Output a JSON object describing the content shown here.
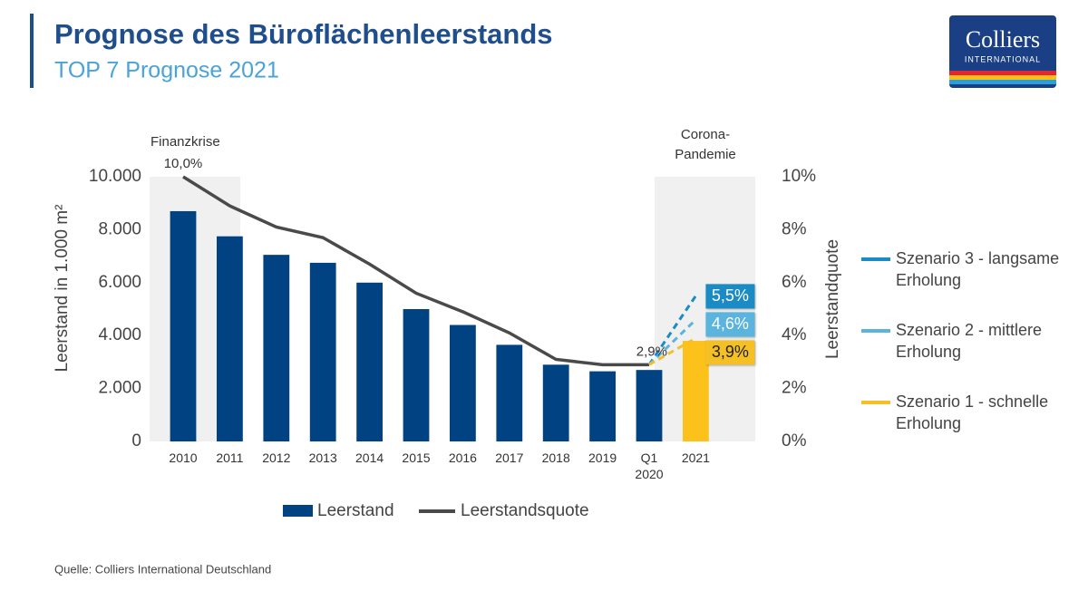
{
  "header": {
    "title": "Prognose des Büroflächenleerstands",
    "subtitle": "TOP 7 Prognose 2021"
  },
  "logo": {
    "name": "Colliers",
    "sub": "INTERNATIONAL"
  },
  "source": "Quelle: Colliers International Deutschland",
  "chart_data": {
    "type": "bar",
    "categories": [
      "2010",
      "2011",
      "2012",
      "2013",
      "2014",
      "2015",
      "2016",
      "2017",
      "2018",
      "2019",
      "Q1 2020",
      "2021"
    ],
    "ylabel": "Leerstand in 1.000 m²",
    "y2label": "Leerstandquote",
    "ylim": [
      0,
      10000
    ],
    "yticks": [
      0,
      {
        "value": 2000,
        "label": "2.000"
      },
      {
        "value": 4000,
        "label": "4.000"
      },
      {
        "value": 6000,
        "label": "6.000"
      },
      {
        "value": 8000,
        "label": "8.000"
      },
      {
        "value": 10000,
        "label": "10.000"
      }
    ],
    "y2lim": [
      0,
      10
    ],
    "y2ticks": [
      {
        "value": 0,
        "label": "0%"
      },
      {
        "value": 2,
        "label": "2%"
      },
      {
        "value": 4,
        "label": "4%"
      },
      {
        "value": 6,
        "label": "6%"
      },
      {
        "value": 8,
        "label": "8%"
      },
      {
        "value": 10,
        "label": "10%"
      }
    ],
    "annotations": [
      "Finanzkrise",
      "Corona-Pandemie"
    ],
    "series": [
      {
        "name": "Leerstand",
        "type": "bar",
        "color": "#004282",
        "colors": [
          "#004282",
          "#004282",
          "#004282",
          "#004282",
          "#004282",
          "#004282",
          "#004282",
          "#004282",
          "#004282",
          "#004282",
          "#004282",
          "#fcc21b"
        ],
        "values": [
          8700,
          7750,
          7050,
          6750,
          6000,
          5000,
          4400,
          3650,
          2900,
          2650,
          2700,
          3800
        ]
      },
      {
        "name": "Leerstandsquote",
        "type": "line",
        "axis": "y2",
        "color": "#4a4a4a",
        "values": [
          10.0,
          8.9,
          8.1,
          7.7,
          6.7,
          5.6,
          4.9,
          4.1,
          3.1,
          2.9,
          2.9,
          null
        ],
        "value_labels": [
          "10,0%",
          null,
          null,
          null,
          null,
          null,
          null,
          null,
          null,
          null,
          "2,9%",
          null
        ]
      },
      {
        "name": "Szenario 3 - langsame Erholung",
        "type": "line",
        "dashed": true,
        "axis": "y2",
        "color": "#1a8bc4",
        "label_text_color": "#ffffff",
        "values": [
          null,
          null,
          null,
          null,
          null,
          null,
          null,
          null,
          null,
          null,
          2.9,
          5.5
        ],
        "value_labels": [
          null,
          null,
          null,
          null,
          null,
          null,
          null,
          null,
          null,
          null,
          null,
          "5,5%"
        ]
      },
      {
        "name": "Szenario 2 - mittlere Erholung",
        "type": "line",
        "dashed": true,
        "axis": "y2",
        "color": "#5ab4dd",
        "label_text_color": "#ffffff",
        "values": [
          null,
          null,
          null,
          null,
          null,
          null,
          null,
          null,
          null,
          null,
          2.9,
          4.6
        ],
        "value_labels": [
          null,
          null,
          null,
          null,
          null,
          null,
          null,
          null,
          null,
          null,
          null,
          "4,6%"
        ]
      },
      {
        "name": "Szenario 1 - schnelle Erholung",
        "type": "line",
        "dashed": true,
        "axis": "y2",
        "color": "#f5c026",
        "label_text_color": "#222222",
        "values": [
          null,
          null,
          null,
          null,
          null,
          null,
          null,
          null,
          null,
          null,
          2.9,
          3.9
        ],
        "value_labels": [
          null,
          null,
          null,
          null,
          null,
          null,
          null,
          null,
          null,
          null,
          null,
          "3,9%"
        ]
      }
    ]
  }
}
